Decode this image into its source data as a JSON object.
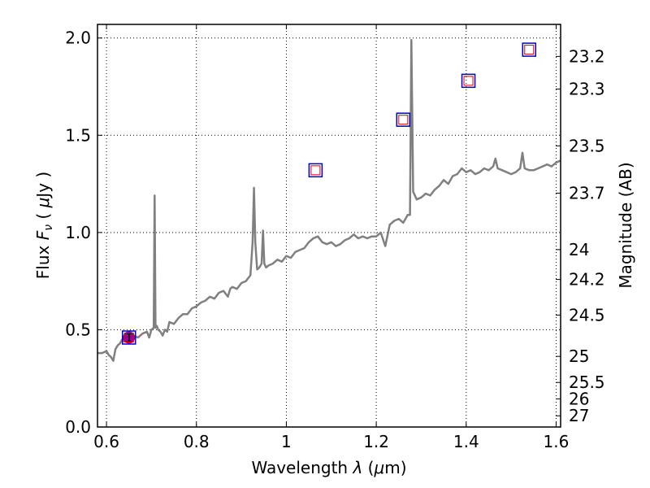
{
  "chart_data": {
    "type": "line",
    "xlabel_parts": [
      "Wavelength ",
      "λ",
      " (",
      "μ",
      "m)"
    ],
    "ylabel_parts": [
      "Flux  ",
      "F",
      "ν",
      "  ( ",
      "μ",
      "Jy )"
    ],
    "y2label": "Magnitude (AB)",
    "xlim": [
      0.58,
      1.61
    ],
    "ylim": [
      0.0,
      2.07
    ],
    "grid": true,
    "x_ticks": [
      0.6,
      0.8,
      1.0,
      1.2,
      1.4,
      1.6
    ],
    "x_tick_labels": [
      "0.6",
      "0.8",
      "1",
      "1.2",
      "1.4",
      "1.6"
    ],
    "y_ticks": [
      0.0,
      0.5,
      1.0,
      1.5,
      2.0
    ],
    "y_tick_labels": [
      "0.0",
      "0.5",
      "1.0",
      "1.5",
      "2.0"
    ],
    "y2_tick_labels": [
      "23.2",
      "23.3",
      "23.5",
      "23.7",
      "24",
      "24.2",
      "24.5",
      "25",
      "25.5",
      "26",
      "27"
    ],
    "colors": {
      "spectrum": "#808080",
      "marker_outer": "#0000cc",
      "marker_inner": "#dd0000",
      "observed_point": "#990099",
      "grid": "#000000"
    },
    "series": [
      {
        "kind": "spectrum",
        "points": [
          [
            0.58,
            0.38
          ],
          [
            0.59,
            0.38
          ],
          [
            0.6,
            0.39
          ],
          [
            0.605,
            0.37
          ],
          [
            0.61,
            0.36
          ],
          [
            0.615,
            0.34
          ],
          [
            0.62,
            0.4
          ],
          [
            0.625,
            0.42
          ],
          [
            0.63,
            0.43
          ],
          [
            0.635,
            0.45
          ],
          [
            0.64,
            0.44
          ],
          [
            0.645,
            0.46
          ],
          [
            0.65,
            0.47
          ],
          [
            0.66,
            0.47
          ],
          [
            0.67,
            0.46
          ],
          [
            0.68,
            0.48
          ],
          [
            0.69,
            0.49
          ],
          [
            0.695,
            0.46
          ],
          [
            0.7,
            0.5
          ],
          [
            0.705,
            0.51
          ],
          [
            0.707,
            1.19
          ],
          [
            0.709,
            0.51
          ],
          [
            0.712,
            0.52
          ],
          [
            0.715,
            0.5
          ],
          [
            0.72,
            0.49
          ],
          [
            0.725,
            0.47
          ],
          [
            0.73,
            0.5
          ],
          [
            0.735,
            0.49
          ],
          [
            0.74,
            0.54
          ],
          [
            0.75,
            0.53
          ],
          [
            0.76,
            0.56
          ],
          [
            0.77,
            0.58
          ],
          [
            0.78,
            0.58
          ],
          [
            0.79,
            0.61
          ],
          [
            0.8,
            0.62
          ],
          [
            0.81,
            0.64
          ],
          [
            0.82,
            0.65
          ],
          [
            0.83,
            0.67
          ],
          [
            0.84,
            0.66
          ],
          [
            0.85,
            0.69
          ],
          [
            0.86,
            0.7
          ],
          [
            0.87,
            0.67
          ],
          [
            0.875,
            0.71
          ],
          [
            0.88,
            0.72
          ],
          [
            0.89,
            0.71
          ],
          [
            0.9,
            0.74
          ],
          [
            0.91,
            0.75
          ],
          [
            0.92,
            0.78
          ],
          [
            0.925,
            0.95
          ],
          [
            0.928,
            1.23
          ],
          [
            0.931,
            0.95
          ],
          [
            0.935,
            0.81
          ],
          [
            0.94,
            0.82
          ],
          [
            0.945,
            0.84
          ],
          [
            0.948,
            1.01
          ],
          [
            0.951,
            0.84
          ],
          [
            0.955,
            0.82
          ],
          [
            0.96,
            0.83
          ],
          [
            0.97,
            0.84
          ],
          [
            0.98,
            0.86
          ],
          [
            0.99,
            0.85
          ],
          [
            1.0,
            0.88
          ],
          [
            1.01,
            0.87
          ],
          [
            1.02,
            0.9
          ],
          [
            1.03,
            0.91
          ],
          [
            1.04,
            0.92
          ],
          [
            1.05,
            0.95
          ],
          [
            1.06,
            0.97
          ],
          [
            1.07,
            0.98
          ],
          [
            1.08,
            0.95
          ],
          [
            1.09,
            0.94
          ],
          [
            1.1,
            0.95
          ],
          [
            1.11,
            0.93
          ],
          [
            1.12,
            0.94
          ],
          [
            1.13,
            0.96
          ],
          [
            1.14,
            0.97
          ],
          [
            1.15,
            0.99
          ],
          [
            1.16,
            0.97
          ],
          [
            1.17,
            0.98
          ],
          [
            1.18,
            0.97
          ],
          [
            1.19,
            0.98
          ],
          [
            1.2,
            0.98
          ],
          [
            1.21,
            1.0
          ],
          [
            1.22,
            0.93
          ],
          [
            1.23,
            1.04
          ],
          [
            1.24,
            1.06
          ],
          [
            1.25,
            1.07
          ],
          [
            1.26,
            1.05
          ],
          [
            1.27,
            1.09
          ],
          [
            1.275,
            1.09
          ],
          [
            1.278,
            1.99
          ],
          [
            1.282,
            1.21
          ],
          [
            1.29,
            1.17
          ],
          [
            1.3,
            1.18
          ],
          [
            1.31,
            1.2
          ],
          [
            1.32,
            1.19
          ],
          [
            1.33,
            1.22
          ],
          [
            1.34,
            1.24
          ],
          [
            1.35,
            1.27
          ],
          [
            1.36,
            1.25
          ],
          [
            1.37,
            1.29
          ],
          [
            1.38,
            1.3
          ],
          [
            1.39,
            1.33
          ],
          [
            1.4,
            1.31
          ],
          [
            1.41,
            1.32
          ],
          [
            1.42,
            1.3
          ],
          [
            1.43,
            1.31
          ],
          [
            1.44,
            1.33
          ],
          [
            1.45,
            1.32
          ],
          [
            1.46,
            1.34
          ],
          [
            1.465,
            1.38
          ],
          [
            1.47,
            1.33
          ],
          [
            1.48,
            1.32
          ],
          [
            1.49,
            1.31
          ],
          [
            1.5,
            1.3
          ],
          [
            1.51,
            1.31
          ],
          [
            1.52,
            1.33
          ],
          [
            1.525,
            1.41
          ],
          [
            1.53,
            1.33
          ],
          [
            1.54,
            1.32
          ],
          [
            1.55,
            1.32
          ],
          [
            1.56,
            1.33
          ],
          [
            1.57,
            1.34
          ],
          [
            1.58,
            1.35
          ],
          [
            1.59,
            1.34
          ],
          [
            1.6,
            1.36
          ],
          [
            1.61,
            1.37
          ]
        ]
      },
      {
        "kind": "model_photometry",
        "points": [
          [
            0.65,
            0.46
          ],
          [
            1.065,
            1.32
          ],
          [
            1.26,
            1.58
          ],
          [
            1.405,
            1.78
          ],
          [
            1.54,
            1.94
          ]
        ]
      },
      {
        "kind": "observed_photometry",
        "points": [
          [
            0.65,
            0.46,
            0.02
          ]
        ]
      }
    ]
  }
}
